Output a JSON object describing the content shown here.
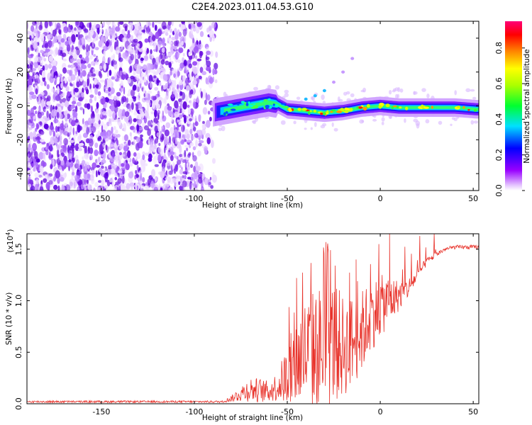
{
  "title": "C2E4.2023.011.04.53.G10",
  "colors": {
    "snr_line": "#e8322a",
    "colorbar": [
      "#cc00ff",
      "#0000ff",
      "#00e0ff",
      "#00ff00",
      "#ffff00",
      "#ff8800",
      "#ff0000",
      "#ff0088"
    ]
  },
  "chart_data": [
    {
      "type": "heatmap",
      "title": "C2E4.2023.011.04.53.G10",
      "xlabel": "Height of straight line (km)",
      "ylabel": "Frequency (Hz)",
      "xlim": [
        -190,
        53
      ],
      "ylim": [
        -50,
        50
      ],
      "x_ticks": [
        -150,
        -100,
        -50,
        0,
        50
      ],
      "y_ticks": [
        -40,
        -20,
        0,
        20,
        40
      ],
      "colorbar": {
        "label": "Normalized spectral amplitude",
        "range": [
          0.0,
          0.95
        ],
        "ticks": [
          0.0,
          0.2,
          0.4,
          0.6,
          0.8
        ]
      },
      "noise_region_x": [
        -190,
        -88
      ],
      "signal_track": {
        "x": [
          -90,
          -80,
          -70,
          -60,
          -55,
          -50,
          -40,
          -30,
          -20,
          -10,
          0,
          10,
          20,
          30,
          40,
          52
        ],
        "freq": [
          -4,
          -2,
          0,
          2,
          1,
          -2,
          -3,
          -4,
          -3,
          -1,
          0,
          -1,
          -1,
          -1,
          -1,
          -2
        ]
      },
      "secondary_branch": {
        "x": [
          -40,
          -35,
          -30,
          -25,
          -20,
          -15
        ],
        "freq": [
          4,
          6,
          9,
          14,
          20,
          28
        ]
      }
    },
    {
      "type": "line",
      "xlabel": "Height of straight line (km)",
      "ylabel": "SNR (10 * v/v)",
      "y_scale_label": "(x10",
      "y_scale_exp": "4",
      "y_scale_close": ")",
      "xlim": [
        -190,
        53
      ],
      "ylim": [
        0,
        1.65
      ],
      "x_ticks": [
        -150,
        -100,
        -50,
        0,
        50
      ],
      "y_ticks": [
        0.0,
        0.5,
        1.0,
        1.5
      ],
      "y_tick_labels": [
        "0.0",
        "0.5",
        "1.0",
        "1.5"
      ],
      "envelope_x": [
        -190,
        -85,
        -80,
        -75,
        -70,
        -65,
        -60,
        -55,
        -50,
        -45,
        -40,
        -35,
        -30,
        -25,
        -20,
        -15,
        -10,
        -5,
        0,
        5,
        10,
        15,
        20,
        25,
        30,
        35,
        40,
        45,
        53
      ],
      "envelope_mean": [
        0.02,
        0.02,
        0.05,
        0.1,
        0.14,
        0.13,
        0.12,
        0.17,
        0.28,
        0.4,
        0.5,
        0.52,
        0.55,
        0.6,
        0.55,
        0.6,
        0.7,
        0.85,
        0.95,
        1.0,
        1.05,
        1.12,
        1.25,
        1.38,
        1.45,
        1.5,
        1.52,
        1.52,
        1.52
      ],
      "envelope_spread": [
        0.01,
        0.01,
        0.03,
        0.08,
        0.12,
        0.12,
        0.1,
        0.15,
        0.3,
        0.45,
        0.55,
        0.6,
        0.65,
        0.6,
        0.5,
        0.45,
        0.4,
        0.35,
        0.3,
        0.25,
        0.15,
        0.1,
        0.06,
        0.04,
        0.03,
        0.02,
        0.02,
        0.02,
        0.02
      ],
      "peaks": [
        {
          "x": 5,
          "y": 1.65
        },
        {
          "x": -28,
          "y": 1.5
        },
        {
          "x": -45,
          "y": 1.22
        },
        {
          "x": -13,
          "y": 1.4
        }
      ]
    }
  ]
}
